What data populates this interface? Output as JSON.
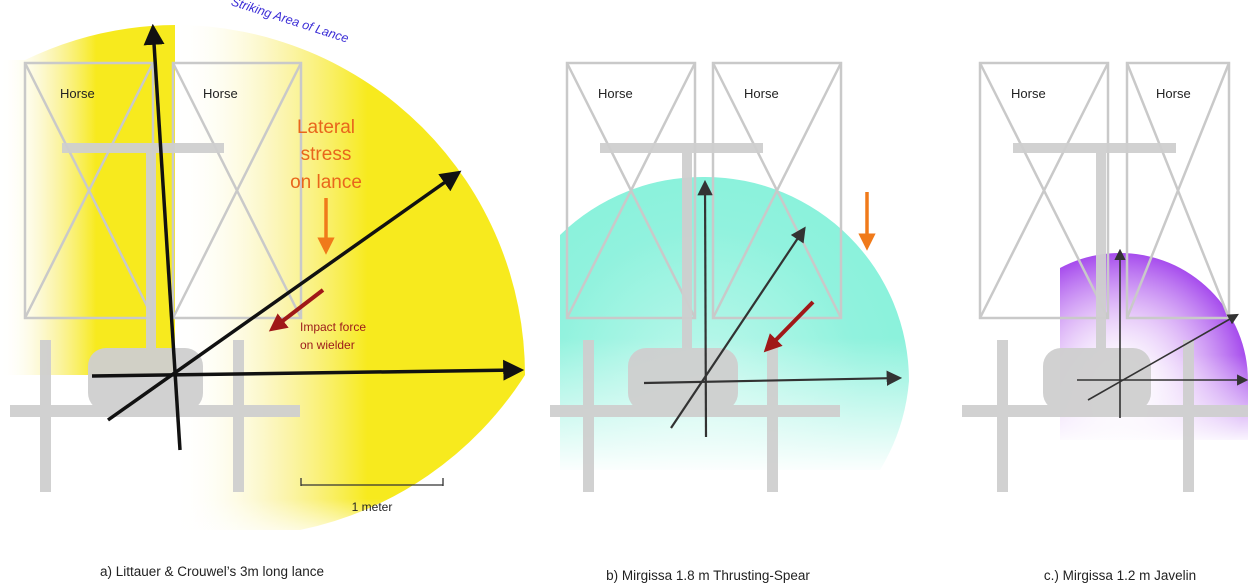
{
  "panels": {
    "a": {
      "horse_left": "Horse",
      "horse_right": "Horse",
      "arc_label": "Striking Area of Lance",
      "stress_line1": "Lateral",
      "stress_line2": "stress",
      "stress_line3": "on lance",
      "impact_line1": "Impact force",
      "impact_line2": "on wielder",
      "scale_label": "1 meter",
      "caption": "a) Littauer & Crouwel’s 3m long lance"
    },
    "b": {
      "horse_left": "Horse",
      "horse_right": "Horse",
      "caption": "b) Mirgissa 1.8 m Thrusting-Spear"
    },
    "c": {
      "horse_left": "Horse",
      "horse_right": "Horse",
      "caption": "c.) Mirgissa 1.2 m Javelin"
    }
  },
  "colors": {
    "yellow_area": "#f7ea1e",
    "teal_area": "#7ef0d8",
    "purple_area": "#b35cf0",
    "chariot_gray": "#cfcfcf",
    "weapon": "#111111",
    "stress_arrow": "#f07a1a",
    "impact_arrow": "#a01818",
    "arc_text": "#3a2cd6"
  }
}
